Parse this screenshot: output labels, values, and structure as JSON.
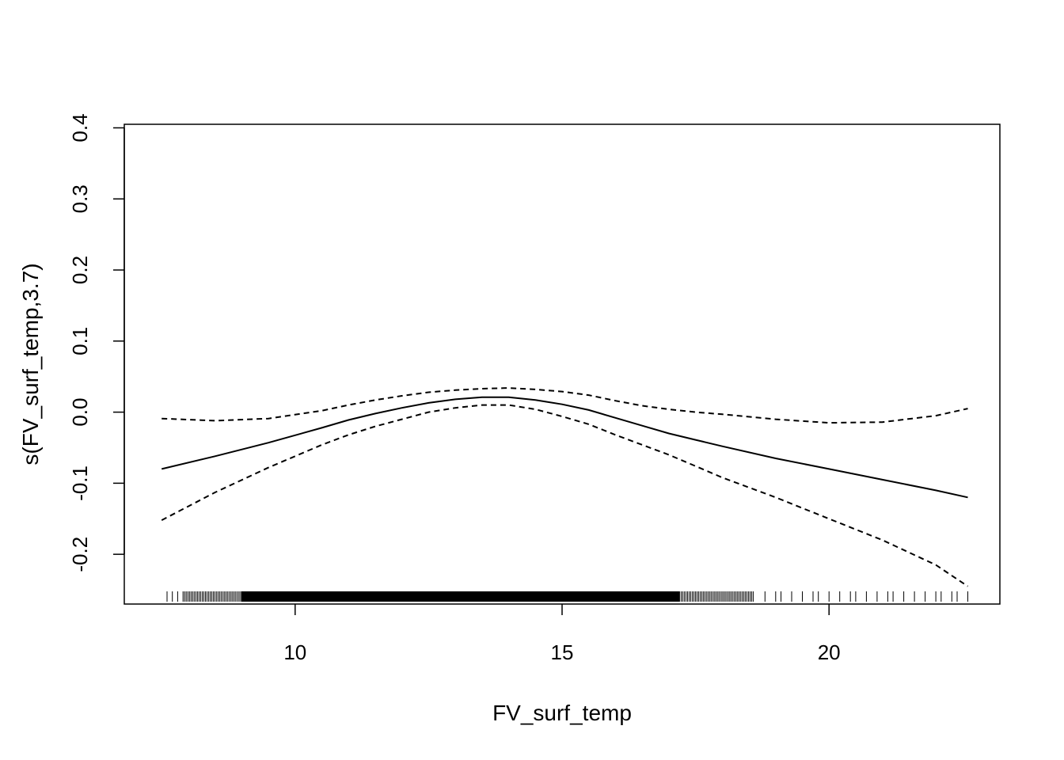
{
  "chart_data": {
    "type": "line",
    "title": "",
    "xlabel": "FV_surf_temp",
    "ylabel": "s(FV_surf_temp,3.7)",
    "xlim": [
      6.8,
      23.2
    ],
    "ylim": [
      -0.27,
      0.405
    ],
    "x_ticks": [
      10,
      15,
      20
    ],
    "x_tick_labels": [
      "10",
      "15",
      "20"
    ],
    "y_ticks": [
      -0.2,
      -0.1,
      0.0,
      0.1,
      0.2,
      0.3,
      0.4
    ],
    "y_tick_labels": [
      "-0.2",
      "-0.1",
      "0.0",
      "0.1",
      "0.2",
      "0.3",
      "0.4"
    ],
    "grid": false,
    "legend": "none",
    "colors": {
      "line": "#000000",
      "background": "#ffffff"
    },
    "x": [
      7.5,
      8.5,
      9.5,
      10.5,
      11.0,
      11.5,
      12.0,
      12.5,
      13.0,
      13.5,
      14.0,
      14.5,
      15.0,
      15.5,
      16.0,
      16.5,
      17.0,
      17.5,
      18.0,
      19.0,
      20.0,
      21.0,
      22.0,
      22.6
    ],
    "series": [
      {
        "style": "solid",
        "values": [
          -0.08,
          -0.062,
          -0.043,
          -0.022,
          -0.011,
          -0.002,
          0.006,
          0.013,
          0.018,
          0.021,
          0.021,
          0.017,
          0.011,
          0.003,
          -0.008,
          -0.019,
          -0.03,
          -0.039,
          -0.048,
          -0.065,
          -0.08,
          -0.095,
          -0.11,
          -0.12
        ]
      },
      {
        "style": "dashed",
        "values": [
          -0.009,
          -0.012,
          -0.009,
          0.002,
          0.01,
          0.017,
          0.023,
          0.028,
          0.031,
          0.033,
          0.034,
          0.032,
          0.029,
          0.024,
          0.016,
          0.009,
          0.004,
          0.0,
          -0.003,
          -0.01,
          -0.015,
          -0.014,
          -0.005,
          0.005
        ]
      },
      {
        "style": "dashed",
        "values": [
          -0.152,
          -0.113,
          -0.078,
          -0.046,
          -0.032,
          -0.02,
          -0.01,
          0.0,
          0.006,
          0.01,
          0.01,
          0.004,
          -0.006,
          -0.017,
          -0.032,
          -0.046,
          -0.06,
          -0.076,
          -0.092,
          -0.12,
          -0.15,
          -0.18,
          -0.215,
          -0.245
        ]
      }
    ],
    "rug": {
      "x_min": 7.6,
      "x_max": 22.6,
      "dense_range": [
        9.0,
        17.2
      ],
      "moderate_ranges": [
        [
          7.9,
          9.0
        ],
        [
          17.2,
          18.6
        ]
      ],
      "sparse_ticks": [
        7.6,
        7.7,
        7.8,
        18.8,
        19.0,
        19.1,
        19.3,
        19.5,
        19.7,
        19.8,
        20.0,
        20.2,
        20.4,
        20.5,
        20.7,
        20.9,
        21.1,
        21.2,
        21.4,
        21.6,
        21.8,
        22.0,
        22.1,
        22.3,
        22.4,
        22.6
      ]
    }
  }
}
